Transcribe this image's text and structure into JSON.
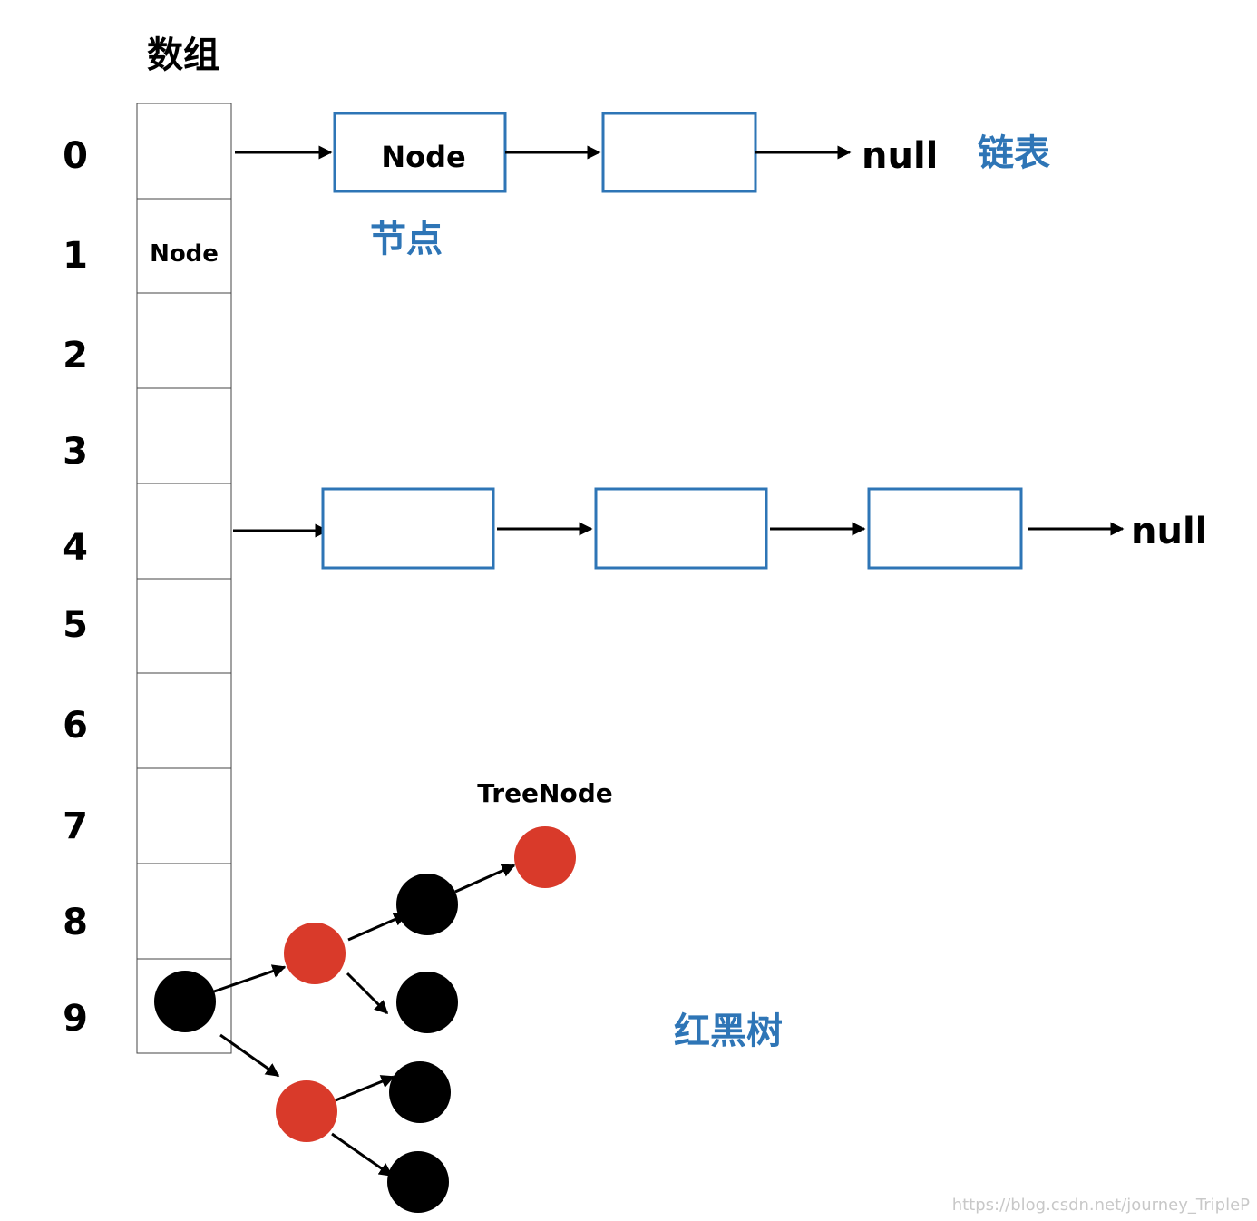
{
  "array": {
    "title": "数组",
    "indices": [
      "0",
      "1",
      "2",
      "3",
      "4",
      "5",
      "6",
      "7",
      "8",
      "9"
    ],
    "cell_1_label": "Node"
  },
  "list_top": {
    "first_node_label": "Node",
    "terminator": "null",
    "node_annotation": "节点",
    "list_annotation": "链表"
  },
  "list_middle": {
    "terminator": "null"
  },
  "tree": {
    "node_label": "TreeNode",
    "annotation": "红黑树"
  },
  "colors": {
    "accent_blue": "#2e75b6",
    "tree_red": "#d93a2a",
    "tree_black": "#000000"
  },
  "watermark": "https://blog.csdn.net/journey_TripleP"
}
